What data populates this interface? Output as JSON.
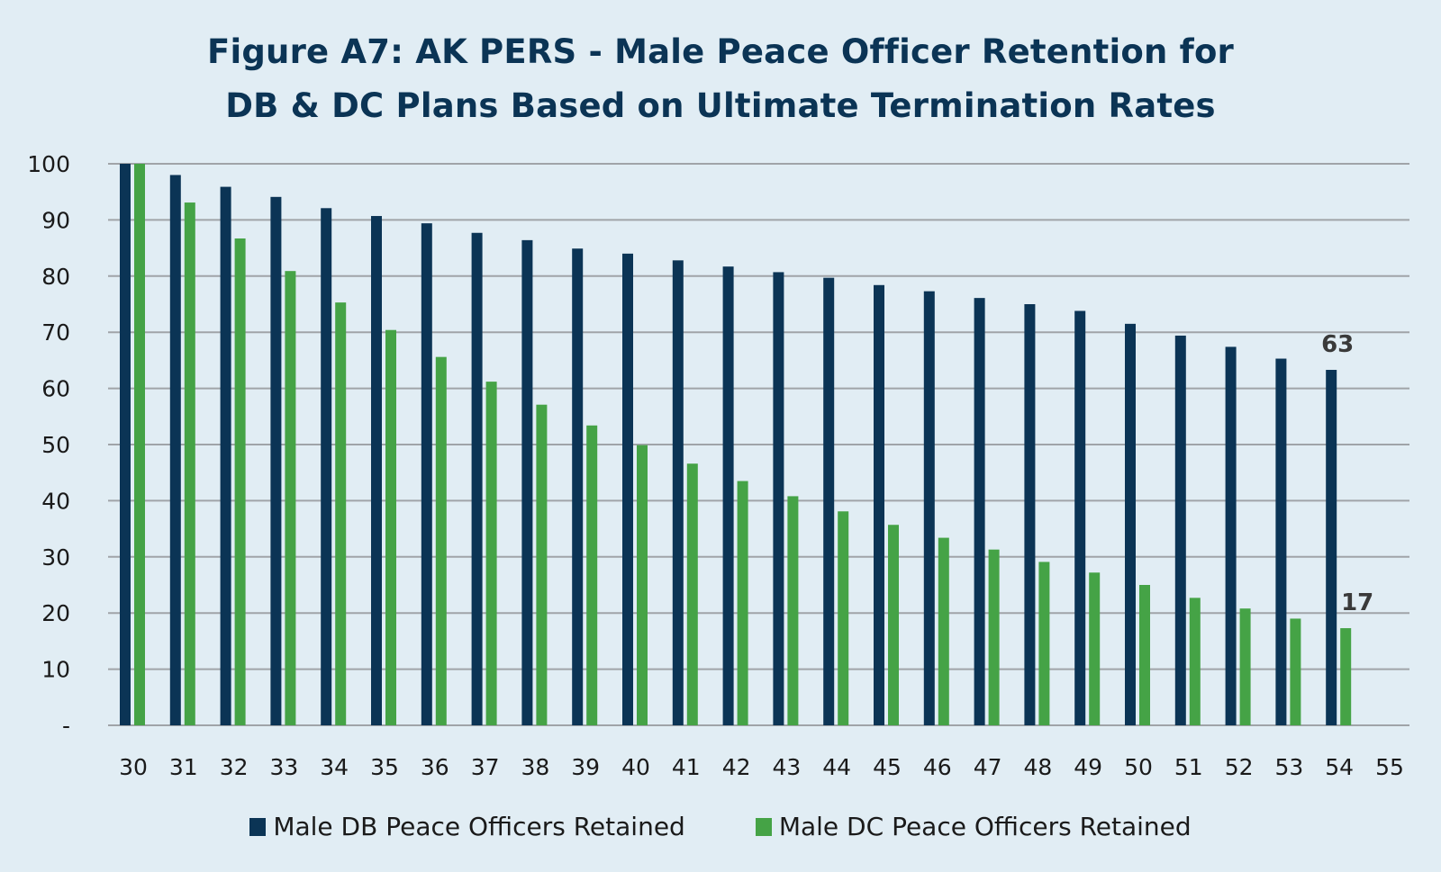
{
  "chart_data": {
    "type": "bar",
    "title_prefix": "Figure A7:",
    "title_line1": "AK PERS - Male Peace Officer Retention for",
    "title_line2": "DB & DC Plans Based on Ultimate Termination Rates",
    "xlabel": "",
    "ylabel": "",
    "ylim": [
      0,
      100
    ],
    "yticks": [
      0,
      10,
      20,
      30,
      40,
      50,
      60,
      70,
      80,
      90,
      100
    ],
    "ytick_labels": [
      "-",
      "10",
      "20",
      "30",
      "40",
      "50",
      "60",
      "70",
      "80",
      "90",
      "100"
    ],
    "categories": [
      "30",
      "31",
      "32",
      "33",
      "34",
      "35",
      "36",
      "37",
      "38",
      "39",
      "40",
      "41",
      "42",
      "43",
      "44",
      "45",
      "46",
      "47",
      "48",
      "49",
      "50",
      "51",
      "52",
      "53",
      "54",
      "55"
    ],
    "grid": true,
    "legend_position": "bottom",
    "series": [
      {
        "name": "Male DB Peace Officers Retained",
        "color": "#0b3455",
        "values": [
          100,
          98.0,
          95.9,
          94.1,
          92.1,
          90.7,
          89.4,
          87.7,
          86.4,
          84.9,
          84.0,
          82.8,
          81.7,
          80.7,
          79.7,
          78.4,
          77.3,
          76.1,
          75.0,
          73.8,
          71.5,
          69.4,
          67.4,
          65.3,
          63.3,
          null
        ]
      },
      {
        "name": "Male DC Peace Officers Retained",
        "color": "#45a346",
        "values": [
          100,
          93.1,
          86.7,
          80.9,
          75.3,
          70.4,
          65.6,
          61.2,
          57.1,
          53.4,
          49.9,
          46.6,
          43.5,
          40.8,
          38.1,
          35.7,
          33.4,
          31.3,
          29.1,
          27.2,
          25.0,
          22.7,
          20.8,
          19.0,
          17.3,
          null
        ]
      }
    ],
    "annotations": [
      {
        "series": 0,
        "category": "54",
        "text": "63"
      },
      {
        "series": 1,
        "category": "54",
        "text": "17"
      }
    ]
  }
}
